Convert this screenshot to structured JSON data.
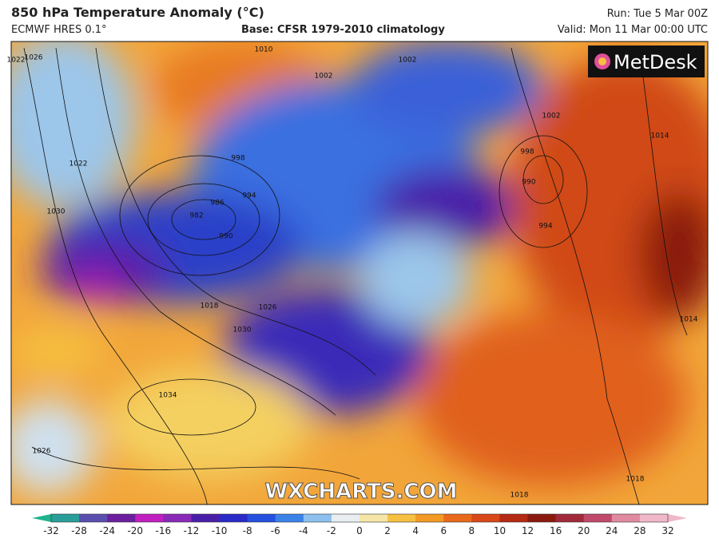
{
  "header": {
    "title": "850 hPa Temperature Anomaly (°C)",
    "model": "ECMWF HRES 0.1°",
    "base": "Base: CFSR 1979-2010 climatology",
    "run": "Run: Tue 5 Mar 00Z",
    "valid": "Valid: Mon 11 Mar 00:00 UTC"
  },
  "map": {
    "logo": "MetDesk",
    "watermark": "WXCHARTS.COM",
    "isobar_labels": [
      "1022",
      "1026",
      "1010",
      "1002",
      "1002",
      "998",
      "994",
      "986",
      "982",
      "990",
      "1022",
      "1030",
      "1018",
      "1026",
      "1030",
      "1034",
      "1026",
      "1002",
      "998",
      "990",
      "994",
      "1014",
      "1018",
      "1018",
      "1014"
    ]
  },
  "colorbar": {
    "ticks": [
      "-32",
      "-28",
      "-24",
      "-20",
      "-16",
      "-12",
      "-10",
      "-8",
      "-6",
      "-4",
      "-2",
      "0",
      "2",
      "4",
      "6",
      "8",
      "10",
      "12",
      "16",
      "20",
      "24",
      "28",
      "32"
    ],
    "colors": [
      "#1fb38f",
      "#2a9f9a",
      "#5a4fae",
      "#6b1f9f",
      "#c020c0",
      "#8a2ab8",
      "#4a1fa8",
      "#2a2ac8",
      "#2450e0",
      "#3a82e8",
      "#8cc0ee",
      "#e8eef2",
      "#f6e6a6",
      "#f6c040",
      "#f29a24",
      "#e86a1a",
      "#d84818",
      "#b52a12",
      "#8a1a0e",
      "#a02a3a",
      "#c04a6a",
      "#e08aa0",
      "#f0b8c8"
    ]
  }
}
